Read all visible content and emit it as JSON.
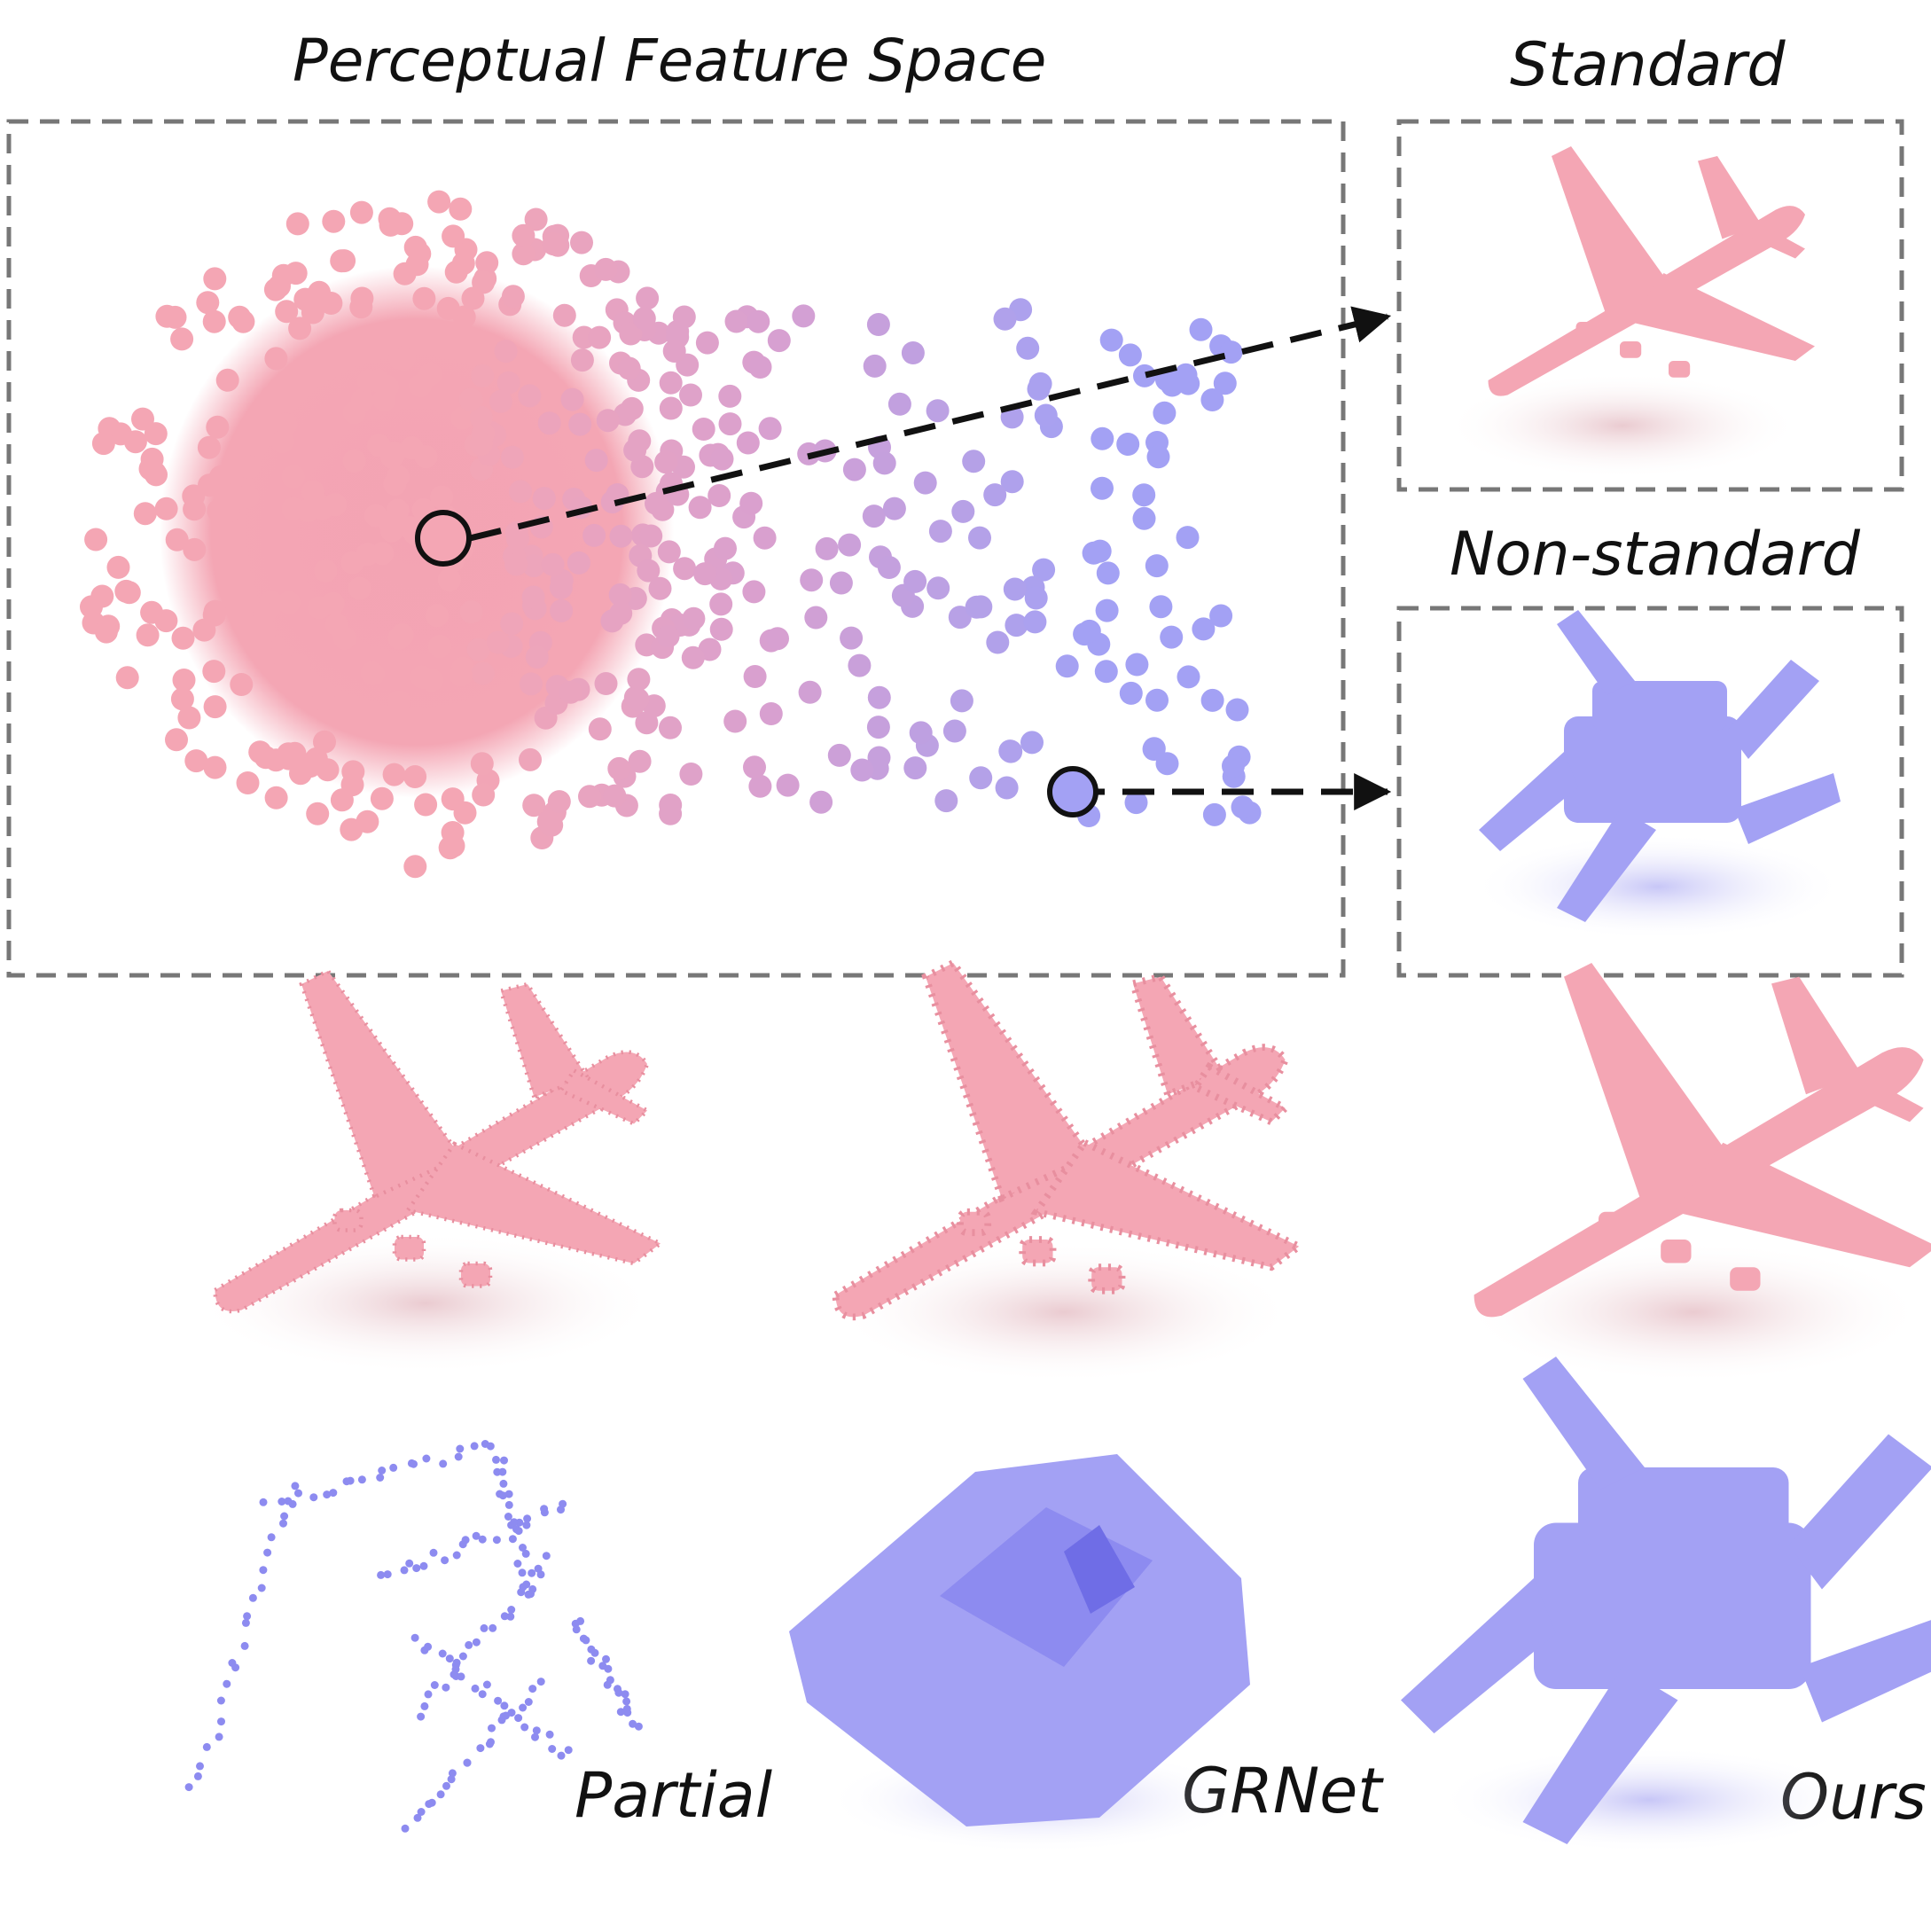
{
  "title": "Perceptual Feature Space",
  "panels": {
    "standard": {
      "label": "Standard"
    },
    "non_standard": {
      "label": "Non-standard"
    }
  },
  "columns": [
    "Partial",
    "GRNet",
    "Ours"
  ],
  "colors": {
    "pink": "#f4a6b4",
    "pink_dark": "#e88f9f",
    "lilac": "#d8a0d0",
    "blue": "#a3a1f4",
    "blue_dark": "#7d7cf0",
    "dash": "#777777",
    "arrow": "#111111"
  },
  "icons": {
    "airplane": "airplane-icon",
    "chair": "chair-icon"
  }
}
